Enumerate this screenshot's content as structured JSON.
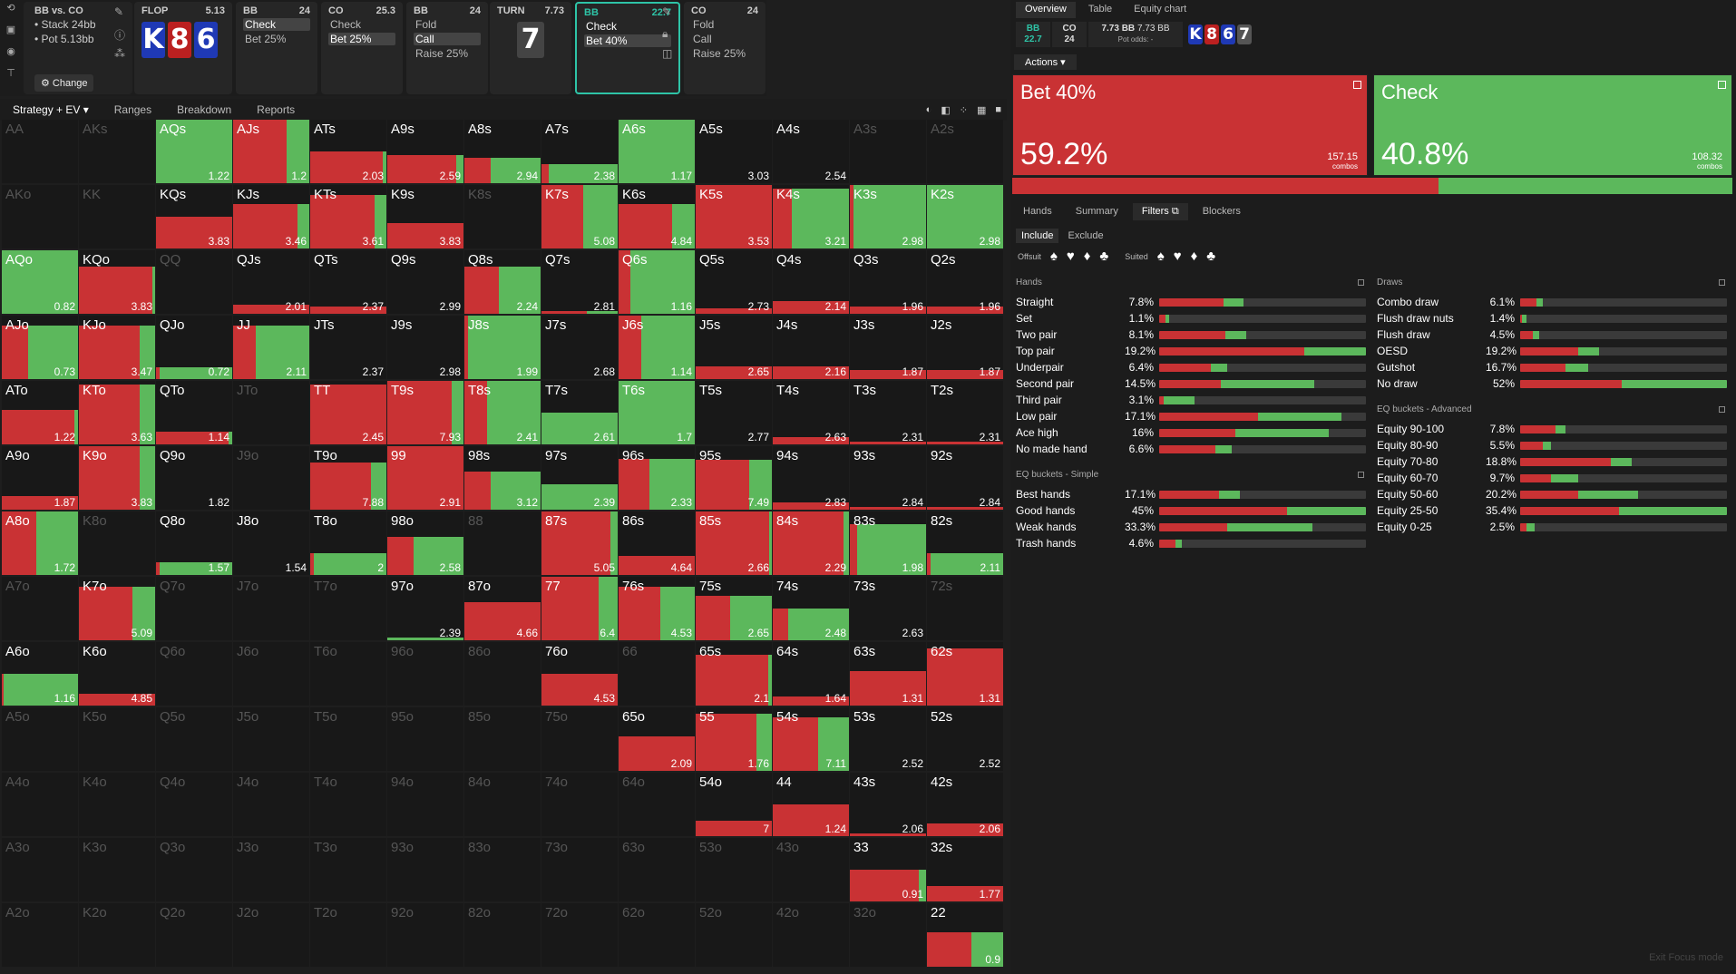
{
  "colors": {
    "red": "#c93234",
    "green": "#5cb85c",
    "blueCard": "#1f39b5",
    "redCard": "#bb2020",
    "bg": "#181818",
    "teal": "#2ec4a7"
  },
  "header": {
    "title": "BB vs. CO",
    "stack": "• Stack 24bb",
    "pot": "• Pot 5.13bb",
    "change_label": "⚙ Change",
    "flop": {
      "label": "FLOP",
      "value": "5.13",
      "cards": [
        {
          "rank": "K",
          "suit": "b"
        },
        {
          "rank": "8",
          "suit": "r"
        },
        {
          "rank": "6",
          "suit": "b"
        }
      ]
    },
    "nodes": [
      {
        "pos": "BB",
        "val": "24",
        "acts": [
          "Check",
          "Bet 25%"
        ],
        "sel": 0
      },
      {
        "pos": "CO",
        "val": "25.3",
        "acts": [
          "Check",
          "Bet 25%"
        ],
        "sel": 1
      },
      {
        "pos": "BB",
        "val": "24",
        "acts": [
          "Fold",
          "Call",
          "Raise 25%"
        ],
        "sel": 1
      }
    ],
    "turn": {
      "label": "TURN",
      "value": "7.73",
      "card": "7"
    },
    "active": {
      "pos": "BB",
      "val": "22.7",
      "acts": [
        "Check",
        "Bet 40%"
      ]
    },
    "last": {
      "pos": "CO",
      "val": "24",
      "acts": [
        "Fold",
        "Call",
        "Raise 25%"
      ]
    }
  },
  "left_tabs": [
    "Strategy + EV",
    "Ranges",
    "Breakdown",
    "Reports"
  ],
  "grid": [
    [
      "AA|d",
      "AKs|d",
      "AQs|1.22|0,1|1.0",
      "AJs|1.2|0.7|1.0",
      "ATs|2.03|0.95|0.5",
      "A9s|2.59|0.9|0.45",
      "A8s|2.94|0.35|0.4",
      "A7s|2.38|0.1|0.3",
      "A6s|1.17|0,1|1.0",
      "A5s|3.03|0|0",
      "A4s|2.54|0|0",
      "A3s|d",
      "A2s|d"
    ],
    [
      "AKo|d",
      "KK|d",
      "KQs|3.83|1.0|0.5",
      "KJs|3.46|0.85|0.7",
      "KTs|3.61|0.85|0.85",
      "K9s|3.83|1.0|0.4",
      "K8s|d",
      "K7s|5.08|0.55|1.0",
      "K6s|4.84|0.7|0.7",
      "K5s|3.53|1.0|1.0",
      "K4s|3.21|0.25|0.95",
      "K3s|2.98|0.05|1.0",
      "K2s|2.98|0|1.0"
    ],
    [
      "AQo|0.82|0,1|1.0",
      "KQo|3.83|0.97|0.75",
      "QQ|d",
      "QJs|2.01|1.0|0.15",
      "QTs|2.37|1.0|0.12",
      "Q9s|2.99|0|0",
      "Q8s|2.24|0.45|0.75",
      "Q7s|2.81|0.6|0.05",
      "Q6s|1.16|0.15|1.0",
      "Q5s|2.73|1.0|0.08",
      "Q4s|2.14|1.0|0.2",
      "Q3s|1.96|1.0|0.12",
      "Q2s|1.96|1.0|0.12"
    ],
    [
      "AJo|0.73|0.35|0.85",
      "KJo|3.47|0.8|0.85",
      "QJo|0.72|0.05|0.18",
      "JJ|2.11|0.3|0.85",
      "JTs|2.37|0|0",
      "J9s|2.98|0|0",
      "J8s|1.99|0.05|1.0",
      "J7s|2.68|0|0",
      "J6s|1.14|0.3|1.0",
      "J5s|2.65|1.0|0.2",
      "J4s|2.16|1.0|0.2",
      "J3s|1.87|1.0|0.15",
      "J2s|1.87|1.0|0.15"
    ],
    [
      "ATo|1.22|0.95|0.55",
      "KTo|3.63|0.8|0.95",
      "QTo|1.14|0.95|0.2",
      "JTo|d",
      "TT|2.45|1.0|0.95",
      "T9s|7.93|0.85|1.0",
      "T8s|2.41|0.3|1.0",
      "T7s|2.61|0|0.5",
      "T6s|1.7|0|1.0",
      "T5s|2.77|0|0",
      "T4s|2.63|1.0|0.12",
      "T3s|2.31|1.0|0.05",
      "T2s|2.31|1.0|0.05"
    ],
    [
      "A9o|1.87|1.0|0.22",
      "K9o|3.83|0.8|1.0",
      "Q9o|1.82|0|0",
      "J9o|d",
      "T9o|7.88|0.8|0.75",
      "99|2.91|1.0|1.0",
      "98s|3.12|0.35|0.6",
      "97s|2.39|0|0.4",
      "96s|2.33|0.4|0.8",
      "95s|7.49|0.7|0.78",
      "94s|2.83|1.0|0.12",
      "93s|2.84|1.0|0.05",
      "92s|2.84|1.0|0.05"
    ],
    [
      "A8o|1.72|0.45|1.0",
      "K8o|d",
      "Q8o|1.57|0.05|0.2",
      "J8o|1.54|0|0",
      "T8o|2|0.05|0.35",
      "98o|2.58|0.35|0.6",
      "88|d",
      "87s|5.05|0.9|1.0",
      "86s|4.64|1.0|0.3",
      "85s|2.66|0.97|1.0",
      "84s|2.29|0.93|1.0",
      "83s|1.98|0.1|0.8",
      "82s|2.11|0.05|0.35"
    ],
    [
      "A7o|d",
      "K7o|5.09|0.7|0.85",
      "Q7o|d",
      "J7o|d",
      "T7o|d",
      "97o|2.39|0|0.05",
      "87o|4.66|1.0|0.6",
      "77|6.4|0.75|1.0",
      "76s|4.53|0.55|0.85",
      "75s|2.65|0.45|0.7",
      "74s|2.48|0.2|0.5",
      "73s|2.63|0|0",
      "72s|d"
    ],
    [
      "A6o|1.16|0.02|0.5",
      "K6o|4.85|1.0|0.18",
      "Q6o|d",
      "J6o|d",
      "T6o|d",
      "96o|d",
      "86o|d",
      "76o|4.53|1.0|0.5",
      "66|d",
      "65s|2.1|0.95|0.8",
      "64s|1.64|1.0|0.15",
      "63s|1.31|1.0|0.55",
      "62s|1.31|1.0|0.9"
    ],
    [
      "A5o|d",
      "K5o|d",
      "Q5o|d",
      "J5o|d",
      "T5o|d",
      "95o|d",
      "85o|d",
      "75o|d",
      "65o|2.09|1.0|0.55",
      "55|1.76|0.8|0.9",
      "54s|7.11|0.6|0.85",
      "53s|2.52|0|0",
      "52s|2.52|0|0"
    ],
    [
      "A4o|d",
      "K4o|d",
      "Q4o|d",
      "J4o|d",
      "T4o|d",
      "94o|d",
      "84o|d",
      "74o|d",
      "64o|d",
      "54o|7|1.0|0.25",
      "44|1.24|1.0|0.5",
      "43s|2.06|1.0|0.05",
      "42s|2.06|1.0|0.2"
    ],
    [
      "A3o|d",
      "K3o|d",
      "Q3o|d",
      "J3o|d",
      "T3o|d",
      "93o|d",
      "83o|d",
      "73o|d",
      "63o|d",
      "53o|d",
      "43o|d",
      "33|0.91|0.9|0.5",
      "32s|1.77|1.0|0.25"
    ],
    [
      "A2o|d",
      "K2o|d",
      "Q2o|d",
      "J2o|d",
      "T2o|d",
      "92o|d",
      "82o|d",
      "72o|d",
      "62o|d",
      "52o|d",
      "42o|d",
      "32o|d",
      "22|0.9|0.58|0.55"
    ]
  ],
  "right": {
    "tabs": [
      "Overview",
      "Table",
      "Equity chart"
    ],
    "bb": {
      "pos": "BB",
      "val": "22.7"
    },
    "co": {
      "pos": "CO",
      "val": "24"
    },
    "pot": {
      "a": "7.73 BB",
      "b": "7.73 BB",
      "odds": "Pot odds:  -"
    },
    "board": [
      "K",
      "8",
      "6",
      "7"
    ],
    "actions_label": "Actions ▾",
    "bet": {
      "name": "Bet 40%",
      "pct": "59.2%",
      "combos": "157.15",
      "combos_lbl": "combos"
    },
    "check": {
      "name": "Check",
      "pct": "40.8%",
      "combos": "108.32",
      "combos_lbl": "combos"
    },
    "subtabs": [
      "Hands",
      "Summary",
      "Filters ⧉",
      "Blockers"
    ],
    "include": [
      "Include",
      "Exclude"
    ],
    "offsuit_lbl": "Offsuit",
    "suited_lbl": "Suited",
    "hands": {
      "title": "Hands",
      "rows": [
        [
          "Straight",
          "7.8%",
          0.31,
          0.1
        ],
        [
          "Set",
          "1.1%",
          0.03,
          0.02
        ],
        [
          "Two pair",
          "8.1%",
          0.32,
          0.1
        ],
        [
          "Top pair",
          "19.2%",
          0.7,
          0.3
        ],
        [
          "Underpair",
          "6.4%",
          0.25,
          0.08
        ],
        [
          "Second pair",
          "14.5%",
          0.3,
          0.45
        ],
        [
          "Third pair",
          "3.1%",
          0.02,
          0.15
        ],
        [
          "Low pair",
          "17.1%",
          0.48,
          0.4
        ],
        [
          "Ace high",
          "16%",
          0.37,
          0.45
        ],
        [
          "No made hand",
          "6.6%",
          0.27,
          0.08
        ]
      ]
    },
    "eq_simple": {
      "title": "EQ buckets - Simple",
      "rows": [
        [
          "Best hands",
          "17.1%",
          0.29,
          0.1
        ],
        [
          "Good hands",
          "45%",
          0.62,
          0.38
        ],
        [
          "Weak hands",
          "33.3%",
          0.33,
          0.41
        ],
        [
          "Trash hands",
          "4.6%",
          0.08,
          0.03
        ]
      ]
    },
    "draws": {
      "title": "Draws",
      "rows": [
        [
          "Combo draw",
          "6.1%",
          0.08,
          0.03
        ],
        [
          "Flush draw nuts",
          "1.4%",
          0.01,
          0.02
        ],
        [
          "Flush draw",
          "4.5%",
          0.06,
          0.03
        ],
        [
          "OESD",
          "19.2%",
          0.28,
          0.1
        ],
        [
          "Gutshot",
          "16.7%",
          0.22,
          0.11
        ],
        [
          "No draw",
          "52%",
          0.49,
          0.51
        ]
      ]
    },
    "eq_adv": {
      "title": "EQ buckets - Advanced",
      "rows": [
        [
          "Equity 90-100",
          "7.8%",
          0.17,
          0.05
        ],
        [
          "Equity 80-90",
          "5.5%",
          0.11,
          0.04
        ],
        [
          "Equity 70-80",
          "18.8%",
          0.44,
          0.1
        ],
        [
          "Equity 60-70",
          "9.7%",
          0.15,
          0.13
        ],
        [
          "Equity 50-60",
          "20.2%",
          0.28,
          0.29
        ],
        [
          "Equity 25-50",
          "35.4%",
          0.48,
          0.52
        ],
        [
          "Equity 0-25",
          "2.5%",
          0.03,
          0.04
        ]
      ]
    },
    "exit": "Exit Focus mode"
  }
}
